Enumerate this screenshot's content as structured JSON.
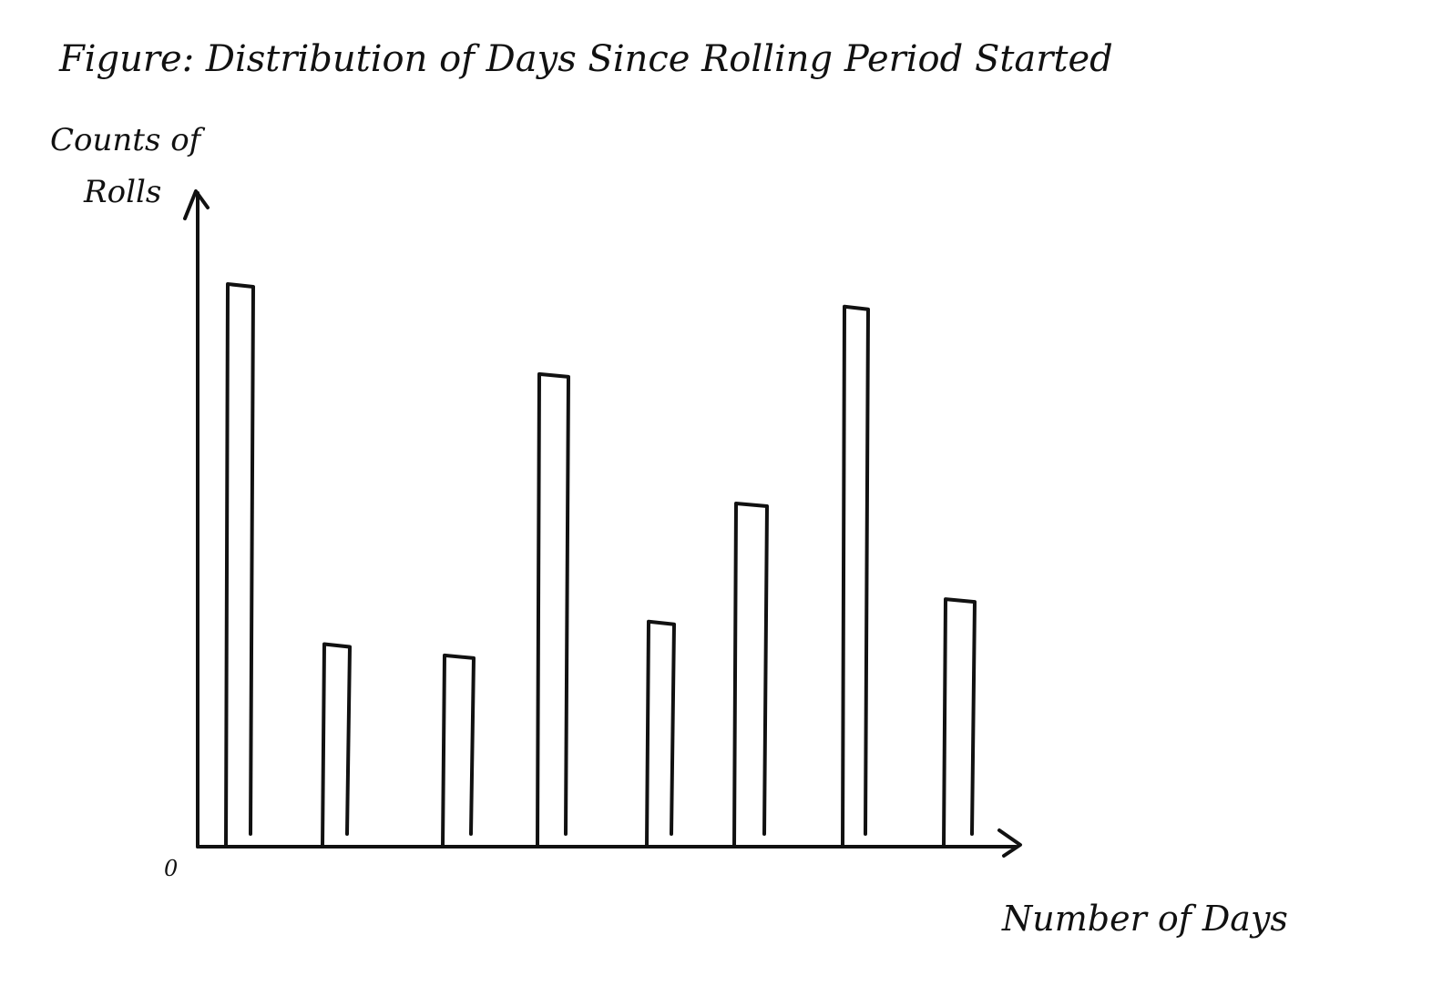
{
  "chart_data": {
    "type": "bar",
    "title": "Figure: Distribution of Days Since Rolling Period Started",
    "ylabel_line1": "Counts of",
    "ylabel_line2": "Rolls",
    "xlabel": "Number of Days",
    "origin_label": "0",
    "categories": [
      "",
      "",
      "",
      "",
      "",
      "",
      "",
      ""
    ],
    "values": [
      100,
      36,
      34,
      84,
      40,
      61,
      96,
      44
    ],
    "ylim": [
      0,
      100
    ],
    "grid": false,
    "legend": "none",
    "color": "#111111"
  }
}
